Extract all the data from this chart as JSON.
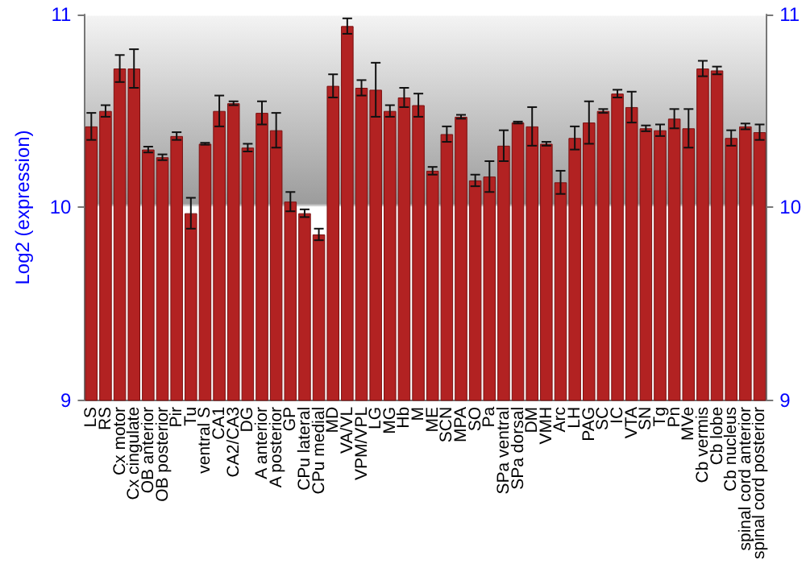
{
  "chart_data": {
    "type": "bar",
    "ylabel": "Log2 (expression)",
    "categories": [
      "LS",
      "RS",
      "Cx motor",
      "Cx cingulate",
      "OB anterior",
      "OB posterior",
      "Pir",
      "Tu",
      "ventral S",
      "CA1",
      "CA2/CA3",
      "DG",
      "A anterior",
      "A posterior",
      "GP",
      "CPu lateral",
      "CPu medial",
      "MD",
      "VA/VL",
      "VPM/VPL",
      "LG",
      "MG",
      "Hb",
      "M",
      "ME",
      "SCN",
      "MPA",
      "SO",
      "Pa",
      "SPa ventral",
      "SPa dorsal",
      "DM",
      "VMH",
      "Arc",
      "LH",
      "PAG",
      "SC",
      "IC",
      "VTA",
      "SN",
      "Tg",
      "Pn",
      "MVe",
      "Cb vermis",
      "Cb lobe",
      "Cb nucleus",
      "spinal cord anterior",
      "spinal cord posterior"
    ],
    "values": [
      10.42,
      10.5,
      10.72,
      10.72,
      10.3,
      10.26,
      10.37,
      9.97,
      10.33,
      10.5,
      10.54,
      10.31,
      10.49,
      10.4,
      10.03,
      9.97,
      9.86,
      10.63,
      10.94,
      10.62,
      10.61,
      10.5,
      10.57,
      10.53,
      10.19,
      10.38,
      10.47,
      10.14,
      10.16,
      10.32,
      10.44,
      10.42,
      10.33,
      10.13,
      10.36,
      10.44,
      10.5,
      10.59,
      10.52,
      10.41,
      10.4,
      10.46,
      10.41,
      10.72,
      10.71,
      10.36,
      10.42,
      10.39
    ],
    "errors": [
      0.07,
      0.03,
      0.07,
      0.1,
      0.015,
      0.015,
      0.02,
      0.08,
      0.005,
      0.08,
      0.01,
      0.02,
      0.06,
      0.09,
      0.05,
      0.02,
      0.03,
      0.06,
      0.04,
      0.04,
      0.14,
      0.03,
      0.05,
      0.06,
      0.02,
      0.04,
      0.01,
      0.03,
      0.08,
      0.08,
      0.005,
      0.1,
      0.01,
      0.06,
      0.06,
      0.11,
      0.01,
      0.02,
      0.08,
      0.015,
      0.03,
      0.05,
      0.1,
      0.04,
      0.02,
      0.04,
      0.015,
      0.04
    ],
    "color": "#b22222",
    "ylim": [
      9,
      11
    ],
    "yticks": [
      9,
      10,
      11
    ],
    "y2lim": [
      9,
      11
    ],
    "y2ticks": [
      9,
      10,
      11
    ],
    "grid": "y",
    "legend": false
  }
}
